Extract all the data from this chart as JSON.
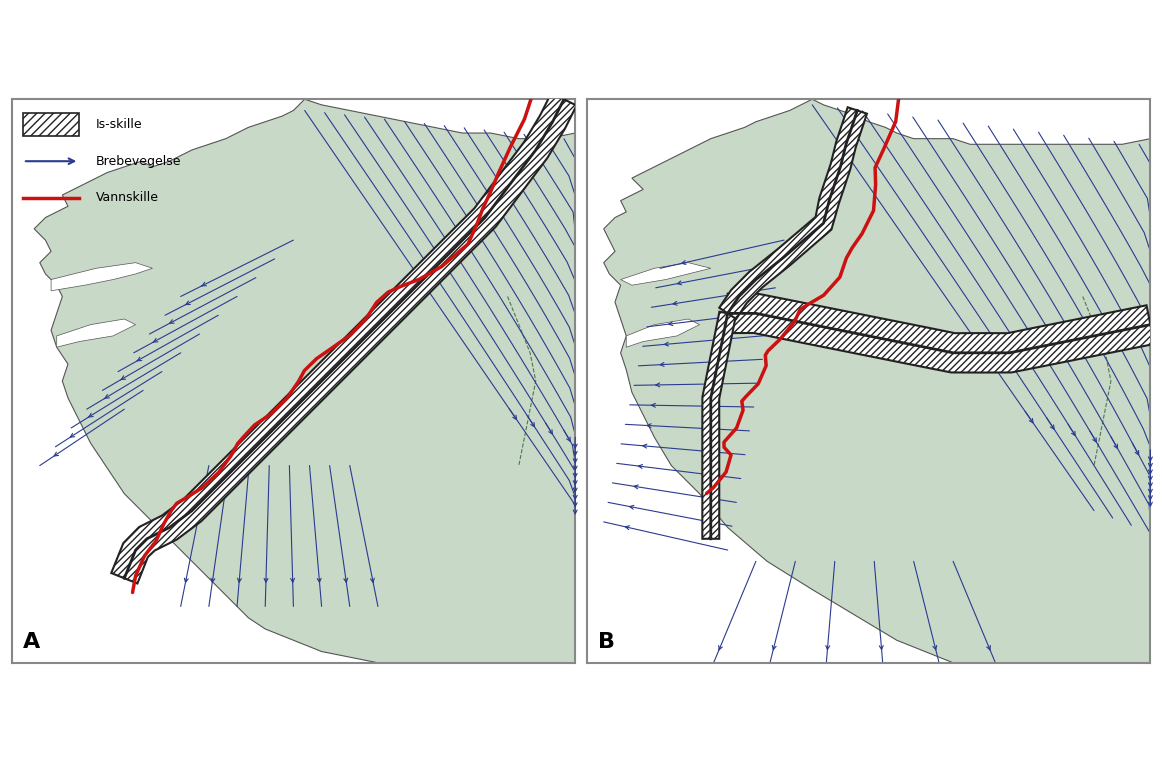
{
  "title": "",
  "background_color": "#ffffff",
  "map_fill_color": "#c8d9c8",
  "map_edge_color": "#555555",
  "flow_line_color": "#2b3b8f",
  "vannskille_color": "#cc1111",
  "isskille_hatch_color": "#222222",
  "ocean_color": "#ffffff",
  "dashed_border_color": "#4a7a4a",
  "legend_labels": [
    "Is-skille",
    "Brebevegelse",
    "Vannskille"
  ],
  "label_A": "A",
  "label_B": "B",
  "figsize": [
    11.62,
    7.62
  ],
  "dpi": 100,
  "outer_border_color": "#888888",
  "outer_border_lw": 1.5
}
